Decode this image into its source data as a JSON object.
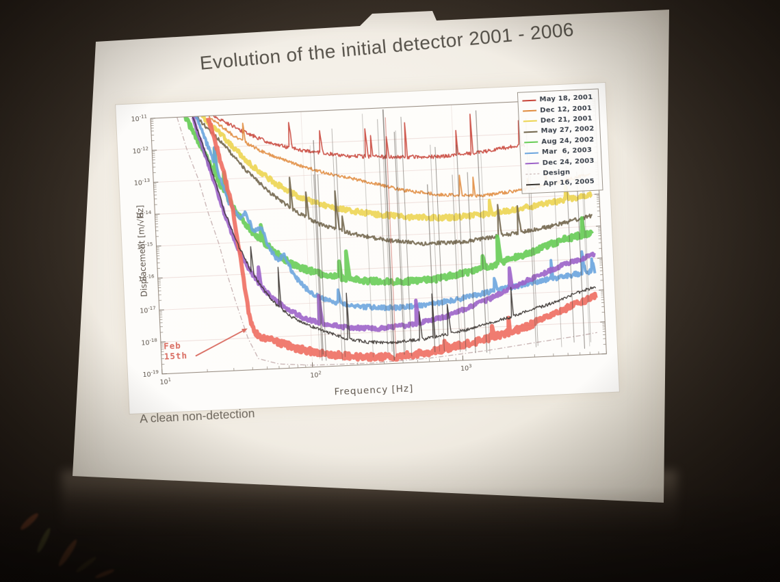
{
  "slide": {
    "title": "Evolution of the initial detector 2001 - 2006",
    "caption": "A clean non-detection"
  },
  "chart_data": {
    "type": "line",
    "title": "",
    "xlabel": "Frequency [Hz]",
    "ylabel": "Displacement [m/√Hz]",
    "x_scale": "log",
    "y_scale": "log",
    "xlim": [
      10,
      9000
    ],
    "ylim": [
      1e-19,
      1e-11
    ],
    "x_tick_exponents": [
      1,
      2,
      3
    ],
    "y_tick_exponents": [
      -11,
      -12,
      -13,
      -14,
      -15,
      -16,
      -17,
      -18,
      -19
    ],
    "grid": true,
    "legend_position": "top-right",
    "annotation": {
      "text": "Feb 15th",
      "color": "#d96a5f",
      "points_to": {
        "f": 38,
        "value": 2e-18
      }
    },
    "series": [
      {
        "name": "May 18, 2001",
        "color": "#c84337",
        "width": 1.6,
        "noise": 0.06,
        "spike_p": 0.02,
        "spike_h": 1.5,
        "dash": false,
        "legend": true,
        "zorder": 2,
        "points": [
          [
            26,
            1e-11
          ],
          [
            40,
            3e-12
          ],
          [
            60,
            1.2e-12
          ],
          [
            100,
            6e-13
          ],
          [
            200,
            3.5e-13
          ],
          [
            400,
            2.8e-13
          ],
          [
            800,
            2.5e-13
          ],
          [
            1500,
            3e-13
          ],
          [
            3000,
            4.5e-13
          ]
        ]
      },
      {
        "name": "Dec 12, 2001",
        "color": "#e08a3c",
        "width": 1.8,
        "noise": 0.05,
        "spike_p": 0.007,
        "spike_h": 0.7,
        "dash": false,
        "legend": true,
        "zorder": 3,
        "points": [
          [
            24,
            1e-11
          ],
          [
            36,
            2e-12
          ],
          [
            55,
            6e-13
          ],
          [
            85,
            2.5e-13
          ],
          [
            140,
            1.1e-13
          ],
          [
            250,
            5.5e-14
          ],
          [
            450,
            2.5e-14
          ],
          [
            800,
            1.6e-14
          ],
          [
            1500,
            1.3e-14
          ],
          [
            3000,
            1.8e-14
          ],
          [
            5500,
            3e-14
          ],
          [
            8000,
            4.5e-14
          ]
        ]
      },
      {
        "name": "Dec 21, 2001",
        "color": "#ecd44e",
        "width": 4.5,
        "noise": 0.08,
        "spike_p": 0.004,
        "spike_h": 0.5,
        "dash": false,
        "legend": true,
        "zorder": 4,
        "points": [
          [
            22,
            1e-11
          ],
          [
            32,
            1.5e-12
          ],
          [
            45,
            2.5e-13
          ],
          [
            65,
            6e-14
          ],
          [
            95,
            2e-14
          ],
          [
            150,
            9e-15
          ],
          [
            280,
            5e-15
          ],
          [
            500,
            3.5e-15
          ],
          [
            900,
            3e-15
          ],
          [
            1800,
            3.5e-15
          ],
          [
            3500,
            5.5e-15
          ],
          [
            6000,
            8e-15
          ],
          [
            8000,
            1e-14
          ]
        ]
      },
      {
        "name": "May 27, 2002",
        "color": "#6e6248",
        "width": 2.2,
        "noise": 0.06,
        "spike_p": 0.013,
        "spike_h": 1.2,
        "dash": false,
        "legend": true,
        "zorder": 5,
        "points": [
          [
            20,
            1e-11
          ],
          [
            30,
            1.2e-12
          ],
          [
            42,
            1.6e-13
          ],
          [
            60,
            3e-14
          ],
          [
            85,
            8e-15
          ],
          [
            120,
            3e-15
          ],
          [
            200,
            1.3e-15
          ],
          [
            350,
            7e-16
          ],
          [
            600,
            5e-16
          ],
          [
            1100,
            5e-16
          ],
          [
            2200,
            7.5e-16
          ],
          [
            4000,
            1.1e-15
          ],
          [
            8000,
            2.2e-15
          ]
        ]
      },
      {
        "name": "Aug 24, 2002",
        "color": "#63cb52",
        "width": 5.5,
        "noise": 0.09,
        "spike_p": 0.01,
        "spike_h": 1.0,
        "dash": false,
        "legend": true,
        "zorder": 6,
        "points": [
          [
            17,
            1e-11
          ],
          [
            22,
            8e-13
          ],
          [
            28,
            6e-14
          ],
          [
            35,
            8e-15
          ],
          [
            44,
            2e-15
          ],
          [
            55,
            7e-16
          ],
          [
            70,
            2.5e-16
          ],
          [
            90,
            1.3e-16
          ],
          [
            120,
            8e-17
          ],
          [
            170,
            5.5e-17
          ],
          [
            260,
            4e-17
          ],
          [
            420,
            3.5e-17
          ],
          [
            700,
            3.8e-17
          ],
          [
            1400,
            6.5e-17
          ],
          [
            2800,
            1.7e-16
          ],
          [
            5000,
            4.2e-16
          ],
          [
            8000,
            6.5e-16
          ]
        ]
      },
      {
        "name": "Mar  6, 2003",
        "color": "#68a3de",
        "width": 4.0,
        "noise": 0.07,
        "spike_p": 0.008,
        "spike_h": 0.9,
        "dash": false,
        "legend": true,
        "zorder": 7,
        "points": [
          [
            20,
            1e-11
          ],
          [
            26,
            3e-13
          ],
          [
            31,
            2e-14
          ],
          [
            36,
            6e-15
          ],
          [
            40,
            8e-15
          ],
          [
            45,
            2e-15
          ],
          [
            50,
            3e-15
          ],
          [
            56,
            6e-16
          ],
          [
            63,
            2.5e-16
          ],
          [
            70,
            3.5e-16
          ],
          [
            80,
            8e-17
          ],
          [
            95,
            3e-17
          ],
          [
            115,
            1.5e-17
          ],
          [
            150,
            9e-18
          ],
          [
            220,
            6.5e-18
          ],
          [
            350,
            5.5e-18
          ],
          [
            600,
            6e-18
          ],
          [
            1000,
            8.5e-18
          ],
          [
            1800,
            1.4e-17
          ],
          [
            3500,
            2.4e-17
          ],
          [
            6000,
            3.4e-17
          ],
          [
            8000,
            4e-17
          ]
        ]
      },
      {
        "name": "Dec 24, 2003",
        "color": "#9a5fc8",
        "width": 5.0,
        "noise": 0.06,
        "spike_p": 0.008,
        "spike_h": 1.0,
        "dash": false,
        "legend": true,
        "zorder": 8,
        "points": [
          [
            19,
            1e-11
          ],
          [
            24,
            2e-13
          ],
          [
            29,
            8e-15
          ],
          [
            34,
            8e-16
          ],
          [
            40,
            1.5e-16
          ],
          [
            48,
            4e-17
          ],
          [
            58,
            1.5e-17
          ],
          [
            72,
            7e-18
          ],
          [
            90,
            3.5e-18
          ],
          [
            120,
            2.2e-18
          ],
          [
            180,
            1.5e-18
          ],
          [
            280,
            1.3e-18
          ],
          [
            450,
            1.5e-18
          ],
          [
            800,
            2.5e-18
          ],
          [
            1500,
            7e-18
          ],
          [
            2800,
            2.5e-17
          ],
          [
            5000,
            7e-17
          ],
          [
            8000,
            1.35e-16
          ]
        ]
      },
      {
        "name": "Design",
        "color": "#c0a9a9",
        "width": 1.3,
        "noise": 0,
        "spike_p": 0,
        "spike_h": 0,
        "dash": true,
        "legend": true,
        "zorder": 1,
        "points": [
          [
            15,
            1e-11
          ],
          [
            17,
            1e-12
          ],
          [
            20,
            1e-13
          ],
          [
            22.5,
            1e-14
          ],
          [
            26,
            1e-15
          ],
          [
            29,
            1e-16
          ],
          [
            33,
            1e-17
          ],
          [
            38,
            1e-18
          ],
          [
            44,
            2.2e-19
          ],
          [
            60,
            1.4e-19
          ],
          [
            100,
            1.15e-19
          ],
          [
            250,
            1.1e-19
          ],
          [
            600,
            1.3e-19
          ],
          [
            1500,
            1.9e-19
          ],
          [
            3000,
            2.8e-19
          ],
          [
            6000,
            4e-19
          ],
          [
            8000,
            4.8e-19
          ]
        ]
      },
      {
        "name": "Feb 15th",
        "color": "#ee6a5e",
        "width": 6.0,
        "noise": 0.1,
        "spike_p": 0.005,
        "spike_h": 0.5,
        "dash": false,
        "legend": false,
        "zorder": 9,
        "points": [
          [
            24,
            1e-11
          ],
          [
            27,
            1e-12
          ],
          [
            30,
            1e-13
          ],
          [
            33,
            1e-14
          ],
          [
            36,
            3e-16
          ],
          [
            38,
            2e-17
          ],
          [
            40,
            3e-18
          ],
          [
            44,
            1.2e-18
          ],
          [
            55,
            8e-19
          ],
          [
            80,
            4e-19
          ],
          [
            120,
            2.5e-19
          ],
          [
            200,
            1.8e-19
          ],
          [
            350,
            1.6e-19
          ],
          [
            600,
            2e-19
          ],
          [
            1200,
            3.5e-19
          ],
          [
            2500,
            8e-19
          ],
          [
            5000,
            3e-18
          ],
          [
            8000,
            7e-18
          ]
        ]
      },
      {
        "name": "Apr 16, 2005",
        "color": "#35302c",
        "width": 1.4,
        "noise": 0.05,
        "spike_p": 0.016,
        "spike_h": 1.5,
        "dash": false,
        "legend": true,
        "zorder": 10,
        "points": [
          [
            19,
            1e-11
          ],
          [
            24,
            3e-13
          ],
          [
            29,
            1e-14
          ],
          [
            35,
            8e-16
          ],
          [
            42,
            1.2e-16
          ],
          [
            50,
            3e-17
          ],
          [
            60,
            1e-17
          ],
          [
            75,
            4e-18
          ],
          [
            95,
            2.2e-18
          ],
          [
            120,
            1.3e-18
          ],
          [
            170,
            7e-19
          ],
          [
            240,
            5e-19
          ],
          [
            350,
            4.5e-19
          ],
          [
            600,
            5.5e-19
          ],
          [
            1100,
            9e-19
          ],
          [
            2200,
            2e-18
          ],
          [
            4000,
            4.5e-18
          ],
          [
            6500,
            1e-17
          ],
          [
            8000,
            1.3e-17
          ]
        ]
      }
    ]
  }
}
